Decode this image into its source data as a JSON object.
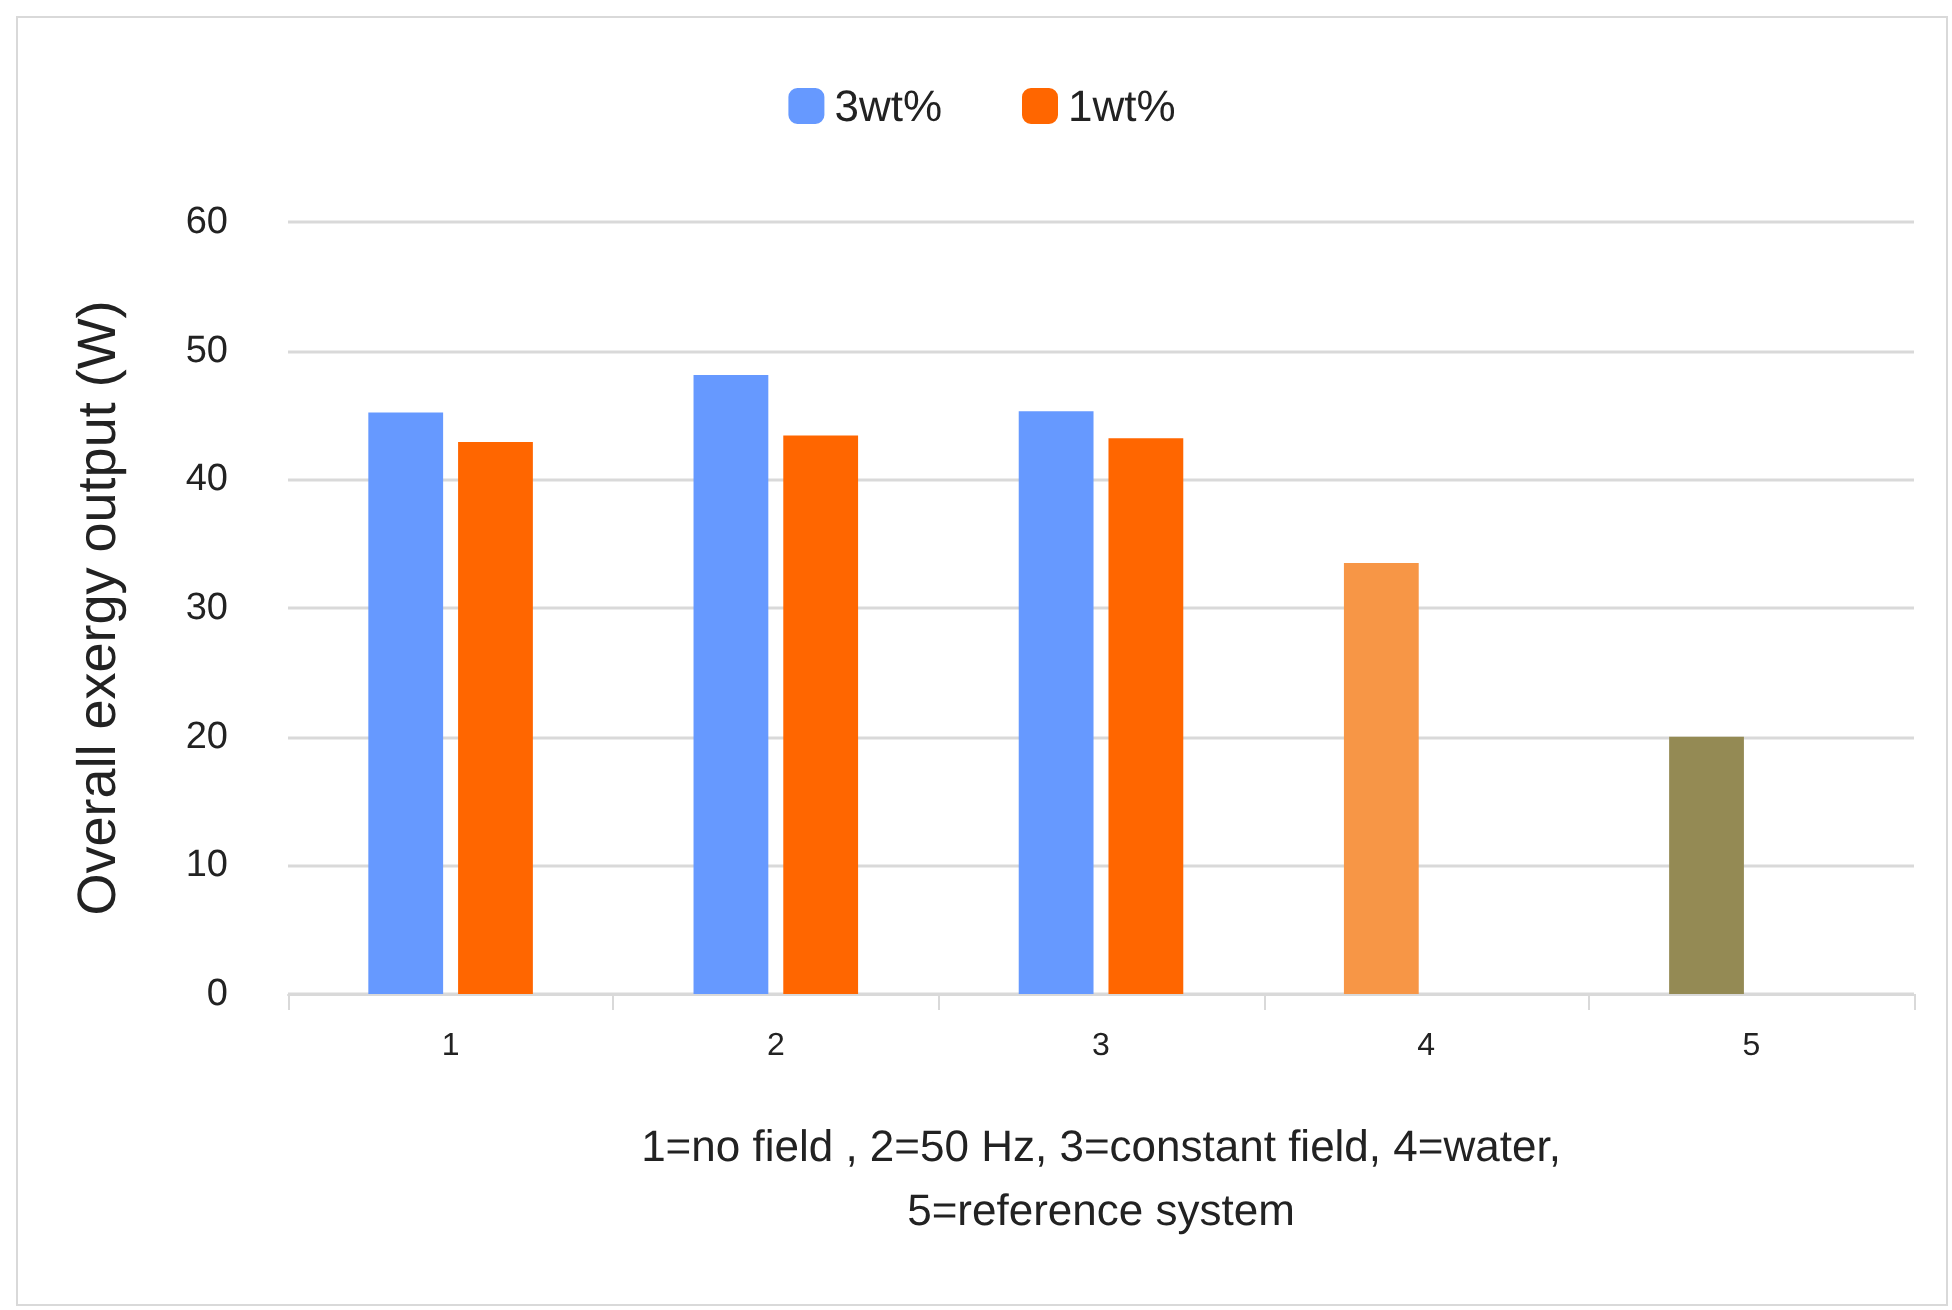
{
  "chart_data": {
    "type": "bar",
    "ylabel": "Overall exergy output (W)",
    "xlabel": "1=no field , 2=50 Hz, 3=constant field, 4=water,\n5=reference system",
    "categories": [
      "1",
      "2",
      "3",
      "4",
      "5"
    ],
    "series": [
      {
        "name": "3wt%",
        "color": "#6699ff",
        "colors": [
          "#6699ff",
          "#6699ff",
          "#6699ff",
          "#f79646",
          "#948a54"
        ],
        "values": [
          45.2,
          48.1,
          45.3,
          33.5,
          20.0
        ]
      },
      {
        "name": "1wt%",
        "color": "#ff6600",
        "values": [
          42.9,
          43.4,
          43.2,
          null,
          null
        ]
      }
    ],
    "ylim": [
      0,
      60
    ],
    "yticks": [
      0,
      10,
      20,
      30,
      40,
      50,
      60
    ],
    "grid": "y",
    "legend": "top"
  }
}
